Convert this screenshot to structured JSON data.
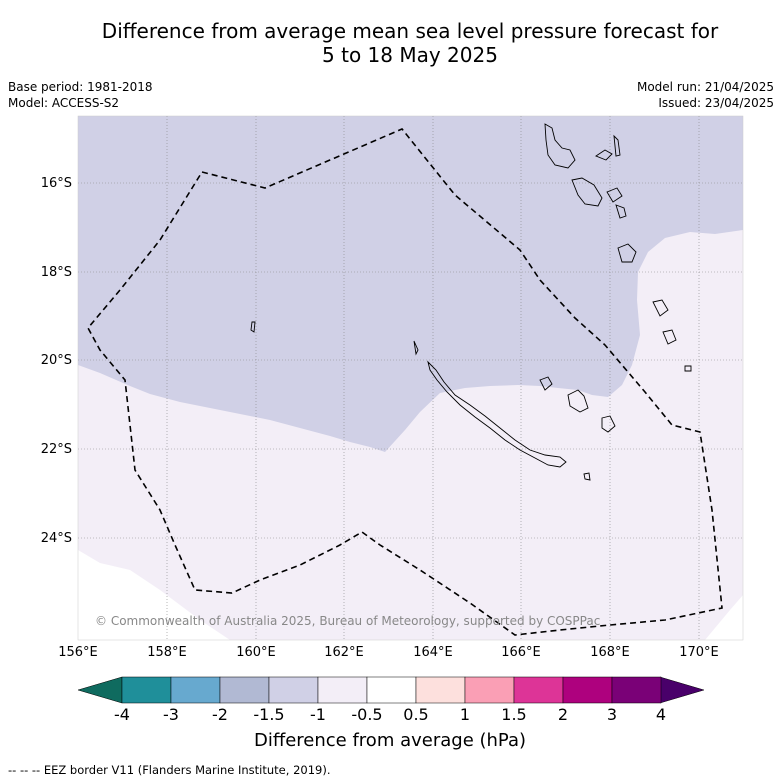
{
  "title_line1": "Difference from average mean sea level pressure forecast for",
  "title_line2": "5 to 18 May 2025",
  "meta": {
    "base_period": "Base period: 1981-2018",
    "model": "Model: ACCESS-S2",
    "model_run": "Model run: 21/04/2025",
    "issued": "Issued: 23/04/2025"
  },
  "map": {
    "lon_range": [
      156,
      171
    ],
    "lat_range": [
      -26.2,
      -14.4
    ],
    "lat_ticks": [
      "16°S",
      "18°S",
      "20°S",
      "22°S",
      "24°S"
    ],
    "lon_ticks": [
      "156°E",
      "158°E",
      "160°E",
      "162°E",
      "164°E",
      "166°E",
      "168°E",
      "170°E"
    ],
    "regions": [
      {
        "category": "-1.5 to -1",
        "color": "#d0d0e6"
      },
      {
        "category": "-1 to -0.5",
        "color": "#f3eef7"
      }
    ],
    "copyright": "© Commonwealth of Australia 2025, Bureau of Meteorology, supported by COSPPac"
  },
  "colorbar": {
    "labels": [
      "-4",
      "-3",
      "-2",
      "-1.5",
      "-1",
      "-0.5",
      "0.5",
      "1",
      "1.5",
      "2",
      "3",
      "4"
    ],
    "colors": [
      "#0f6b5f",
      "#1f8f9a",
      "#67a9cf",
      "#b1b9d3",
      "#d0d0e6",
      "#f3eef7",
      "#ffffff",
      "#fde0dd",
      "#fa9fb5",
      "#dd3497",
      "#ae017e",
      "#7a0177",
      "#49006a"
    ],
    "title": "Difference from average (hPa)"
  },
  "footnote": "-- -- -- EEZ border V11 (Flanders Marine Institute, 2019)."
}
